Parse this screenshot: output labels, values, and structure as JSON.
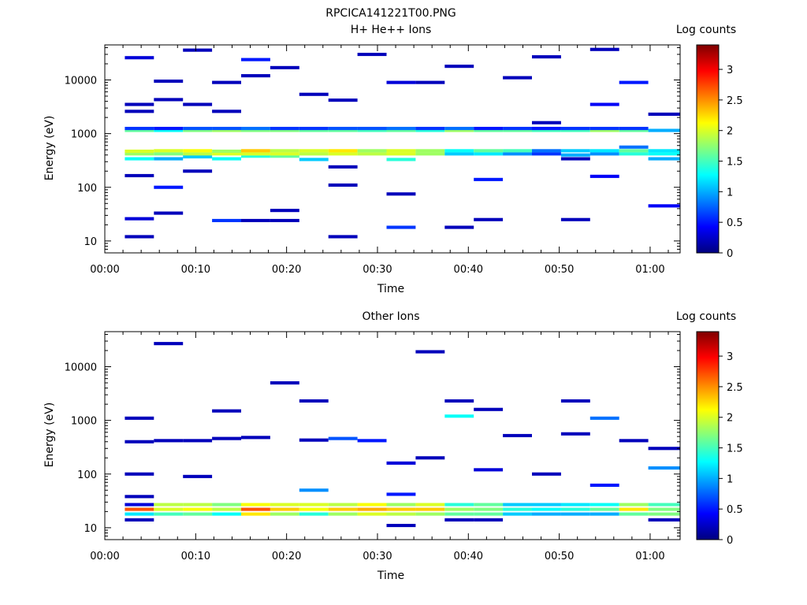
{
  "figure_title": "RPCICA141221T00.PNG",
  "colorscale": [
    "#00007f",
    "#0000ff",
    "#0080ff",
    "#00ffff",
    "#80ff80",
    "#ffff00",
    "#ff8000",
    "#ff0000",
    "#7f0000"
  ],
  "chart_data": [
    {
      "type": "heatmap",
      "title": "H+ He++ Ions",
      "xlabel": "Time",
      "ylabel": "Energy (eV)",
      "colorbar_label": "Log counts",
      "x_ticks": [
        "00:00",
        "00:10",
        "00:20",
        "00:30",
        "00:40",
        "00:50",
        "01:00"
      ],
      "y_ticks": [
        "10",
        "100",
        "1000",
        "10000"
      ],
      "y_scale": "log",
      "xlim_minutes": [
        0,
        63.3
      ],
      "ylim": [
        6,
        45000
      ],
      "clim": [
        0,
        3.4
      ],
      "colorbar_ticks": [
        "0",
        "0.5",
        "1",
        "1.5",
        "2",
        "2.5",
        "3"
      ],
      "time_bins_minutes": [
        [
          2.2,
          5.4
        ],
        [
          5.4,
          8.6
        ],
        [
          8.6,
          11.8
        ],
        [
          11.8,
          15.0
        ],
        [
          15.0,
          18.2
        ],
        [
          18.2,
          21.4
        ],
        [
          21.4,
          24.6
        ],
        [
          24.6,
          27.8
        ],
        [
          27.8,
          31.0
        ],
        [
          31.0,
          34.2
        ],
        [
          34.2,
          37.4
        ],
        [
          37.4,
          40.6
        ],
        [
          40.6,
          43.8
        ],
        [
          43.8,
          47.0
        ],
        [
          47.0,
          50.2
        ],
        [
          50.2,
          53.4
        ],
        [
          53.4,
          56.6
        ],
        [
          56.6,
          59.8
        ],
        [
          59.8,
          63.3
        ]
      ],
      "cells": [
        [
          0,
          12,
          0.2
        ],
        [
          0,
          26,
          0.3
        ],
        [
          0,
          165,
          0.2
        ],
        [
          0,
          340,
          1.3
        ],
        [
          0,
          420,
          1.8
        ],
        [
          0,
          470,
          2.0
        ],
        [
          0,
          1150,
          1.6
        ],
        [
          0,
          1250,
          0.6
        ],
        [
          0,
          2600,
          0.2
        ],
        [
          0,
          3500,
          0.2
        ],
        [
          0,
          26000,
          0.3
        ],
        [
          1,
          33,
          0.2
        ],
        [
          1,
          100,
          0.5
        ],
        [
          1,
          340,
          1.0
        ],
        [
          1,
          420,
          1.7
        ],
        [
          1,
          480,
          2.0
        ],
        [
          1,
          1150,
          1.3
        ],
        [
          1,
          1250,
          0.5
        ],
        [
          1,
          4300,
          0.2
        ],
        [
          1,
          9500,
          0.2
        ],
        [
          2,
          200,
          0.2
        ],
        [
          2,
          370,
          1.1
        ],
        [
          2,
          420,
          1.9
        ],
        [
          2,
          480,
          2.1
        ],
        [
          2,
          1150,
          1.7
        ],
        [
          2,
          1250,
          0.7
        ],
        [
          2,
          3500,
          0.2
        ],
        [
          2,
          36000,
          0.2
        ],
        [
          3,
          24,
          0.6
        ],
        [
          3,
          340,
          1.3
        ],
        [
          3,
          420,
          2.0
        ],
        [
          3,
          470,
          1.8
        ],
        [
          3,
          1150,
          1.8
        ],
        [
          3,
          1250,
          0.7
        ],
        [
          3,
          2600,
          0.2
        ],
        [
          3,
          9000,
          0.2
        ],
        [
          4,
          24,
          0.2
        ],
        [
          4,
          380,
          1.4
        ],
        [
          4,
          420,
          2.0
        ],
        [
          4,
          480,
          2.3
        ],
        [
          4,
          1150,
          1.7
        ],
        [
          4,
          1250,
          0.8
        ],
        [
          4,
          12000,
          0.2
        ],
        [
          4,
          24000,
          0.5
        ],
        [
          5,
          24,
          0.2
        ],
        [
          5,
          37,
          0.2
        ],
        [
          5,
          380,
          1.6
        ],
        [
          5,
          420,
          2.0
        ],
        [
          5,
          480,
          1.9
        ],
        [
          5,
          1150,
          1.7
        ],
        [
          5,
          1250,
          0.6
        ],
        [
          5,
          17000,
          0.2
        ],
        [
          6,
          330,
          1.1
        ],
        [
          6,
          420,
          1.9
        ],
        [
          6,
          480,
          2.0
        ],
        [
          6,
          1150,
          1.6
        ],
        [
          6,
          1250,
          0.6
        ],
        [
          6,
          5400,
          0.2
        ],
        [
          7,
          12,
          0.2
        ],
        [
          7,
          110,
          0.2
        ],
        [
          7,
          240,
          0.2
        ],
        [
          7,
          420,
          2.0
        ],
        [
          7,
          480,
          2.2
        ],
        [
          7,
          1150,
          1.6
        ],
        [
          7,
          1250,
          0.7
        ],
        [
          7,
          4200,
          0.2
        ],
        [
          8,
          420,
          1.9
        ],
        [
          8,
          480,
          1.8
        ],
        [
          8,
          1150,
          1.5
        ],
        [
          8,
          1250,
          0.7
        ],
        [
          8,
          30000,
          0.2
        ],
        [
          9,
          18,
          0.6
        ],
        [
          9,
          75,
          0.2
        ],
        [
          9,
          330,
          1.4
        ],
        [
          9,
          420,
          2.0
        ],
        [
          9,
          480,
          2.0
        ],
        [
          9,
          1150,
          1.6
        ],
        [
          9,
          1250,
          0.8
        ],
        [
          9,
          9000,
          0.3
        ],
        [
          10,
          420,
          1.8
        ],
        [
          10,
          480,
          1.8
        ],
        [
          10,
          1150,
          1.4
        ],
        [
          10,
          1250,
          0.6
        ],
        [
          10,
          9000,
          0.2
        ],
        [
          11,
          18,
          0.2
        ],
        [
          11,
          420,
          1.1
        ],
        [
          11,
          480,
          1.3
        ],
        [
          11,
          1150,
          1.8
        ],
        [
          11,
          1250,
          0.8
        ],
        [
          11,
          18000,
          0.2
        ],
        [
          12,
          25,
          0.2
        ],
        [
          12,
          140,
          0.5
        ],
        [
          12,
          420,
          1.2
        ],
        [
          12,
          480,
          1.6
        ],
        [
          12,
          1150,
          1.6
        ],
        [
          12,
          1250,
          0.5
        ],
        [
          13,
          420,
          0.9
        ],
        [
          13,
          480,
          1.5
        ],
        [
          13,
          1150,
          1.6
        ],
        [
          13,
          1250,
          0.6
        ],
        [
          13,
          11000,
          0.2
        ],
        [
          14,
          420,
          0.6
        ],
        [
          14,
          480,
          0.8
        ],
        [
          14,
          1150,
          1.5
        ],
        [
          14,
          1250,
          0.5
        ],
        [
          14,
          1600,
          0.2
        ],
        [
          14,
          27000,
          0.2
        ],
        [
          15,
          25,
          0.2
        ],
        [
          15,
          340,
          0.2
        ],
        [
          15,
          400,
          1.0
        ],
        [
          15,
          480,
          1.1
        ],
        [
          15,
          1150,
          1.5
        ],
        [
          15,
          1250,
          0.6
        ],
        [
          16,
          160,
          0.4
        ],
        [
          16,
          420,
          0.9
        ],
        [
          16,
          480,
          1.2
        ],
        [
          16,
          1150,
          1.8
        ],
        [
          16,
          1250,
          0.6
        ],
        [
          16,
          3500,
          0.4
        ],
        [
          16,
          37000,
          0.2
        ],
        [
          17,
          420,
          1.4
        ],
        [
          17,
          480,
          1.6
        ],
        [
          17,
          560,
          0.8
        ],
        [
          17,
          1150,
          1.6
        ],
        [
          17,
          1250,
          0.6
        ],
        [
          17,
          9000,
          0.5
        ],
        [
          18,
          45,
          0.4
        ],
        [
          18,
          340,
          1.0
        ],
        [
          18,
          420,
          1.3
        ],
        [
          18,
          480,
          1.2
        ],
        [
          18,
          1150,
          1.0
        ],
        [
          18,
          2300,
          0.2
        ]
      ]
    },
    {
      "type": "heatmap",
      "title": "Other Ions",
      "xlabel": "Time",
      "ylabel": "Energy (eV)",
      "colorbar_label": "Log counts",
      "x_ticks": [
        "00:00",
        "00:10",
        "00:20",
        "00:30",
        "00:40",
        "00:50",
        "01:00"
      ],
      "y_ticks": [
        "10",
        "100",
        "1000",
        "10000"
      ],
      "y_scale": "log",
      "xlim_minutes": [
        0,
        63.3
      ],
      "ylim": [
        6,
        45000
      ],
      "clim": [
        0,
        3.4
      ],
      "colorbar_ticks": [
        "0",
        "0.5",
        "1",
        "1.5",
        "2",
        "2.5",
        "3"
      ],
      "time_bins_minutes": [
        [
          2.2,
          5.4
        ],
        [
          5.4,
          8.6
        ],
        [
          8.6,
          11.8
        ],
        [
          11.8,
          15.0
        ],
        [
          15.0,
          18.2
        ],
        [
          18.2,
          21.4
        ],
        [
          21.4,
          24.6
        ],
        [
          24.6,
          27.8
        ],
        [
          27.8,
          31.0
        ],
        [
          31.0,
          34.2
        ],
        [
          34.2,
          37.4
        ],
        [
          37.4,
          40.6
        ],
        [
          40.6,
          43.8
        ],
        [
          43.8,
          47.0
        ],
        [
          47.0,
          50.2
        ],
        [
          50.2,
          53.4
        ],
        [
          53.4,
          56.6
        ],
        [
          56.6,
          59.8
        ],
        [
          59.8,
          63.3
        ]
      ],
      "cells": [
        [
          0,
          14,
          0.2
        ],
        [
          0,
          18,
          1.2
        ],
        [
          0,
          22,
          2.7
        ],
        [
          0,
          27,
          0.3
        ],
        [
          0,
          38,
          0.2
        ],
        [
          0,
          100,
          0.2
        ],
        [
          0,
          400,
          0.2
        ],
        [
          0,
          1100,
          0.2
        ],
        [
          1,
          18,
          1.5
        ],
        [
          1,
          22,
          2.0
        ],
        [
          1,
          27,
          1.9
        ],
        [
          1,
          420,
          0.2
        ],
        [
          1,
          27000,
          0.2
        ],
        [
          2,
          18,
          1.6
        ],
        [
          2,
          22,
          2.1
        ],
        [
          2,
          27,
          1.9
        ],
        [
          2,
          90,
          0.2
        ],
        [
          2,
          420,
          0.2
        ],
        [
          3,
          18,
          1.3
        ],
        [
          3,
          22,
          1.9
        ],
        [
          3,
          27,
          1.7
        ],
        [
          3,
          460,
          0.2
        ],
        [
          3,
          1500,
          0.2
        ],
        [
          4,
          18,
          2.2
        ],
        [
          4,
          22,
          2.7
        ],
        [
          4,
          27,
          2.1
        ],
        [
          4,
          480,
          0.2
        ],
        [
          5,
          18,
          1.8
        ],
        [
          5,
          22,
          2.3
        ],
        [
          5,
          27,
          2.0
        ],
        [
          5,
          5000,
          0.2
        ],
        [
          6,
          18,
          1.4
        ],
        [
          6,
          22,
          2.1
        ],
        [
          6,
          27,
          2.0
        ],
        [
          6,
          50,
          0.9
        ],
        [
          6,
          430,
          0.2
        ],
        [
          6,
          2300,
          0.2
        ],
        [
          7,
          18,
          1.8
        ],
        [
          7,
          22,
          2.3
        ],
        [
          7,
          27,
          1.9
        ],
        [
          7,
          460,
          0.7
        ],
        [
          8,
          18,
          2.0
        ],
        [
          8,
          22,
          2.4
        ],
        [
          8,
          27,
          2.1
        ],
        [
          8,
          420,
          0.5
        ],
        [
          9,
          11,
          0.2
        ],
        [
          9,
          18,
          1.9
        ],
        [
          9,
          22,
          2.3
        ],
        [
          9,
          27,
          1.8
        ],
        [
          9,
          42,
          0.5
        ],
        [
          9,
          160,
          0.3
        ],
        [
          10,
          18,
          1.8
        ],
        [
          10,
          22,
          2.3
        ],
        [
          10,
          27,
          2.0
        ],
        [
          10,
          200,
          0.2
        ],
        [
          10,
          19000,
          0.2
        ],
        [
          11,
          14,
          0.2
        ],
        [
          11,
          18,
          1.6
        ],
        [
          11,
          22,
          1.8
        ],
        [
          11,
          27,
          1.4
        ],
        [
          11,
          1200,
          1.3
        ],
        [
          11,
          2300,
          0.2
        ],
        [
          12,
          14,
          0.2
        ],
        [
          12,
          18,
          1.6
        ],
        [
          12,
          22,
          1.7
        ],
        [
          12,
          27,
          1.6
        ],
        [
          12,
          120,
          0.3
        ],
        [
          12,
          1600,
          0.2
        ],
        [
          13,
          18,
          1.1
        ],
        [
          13,
          22,
          1.4
        ],
        [
          13,
          27,
          1.1
        ],
        [
          13,
          520,
          0.2
        ],
        [
          14,
          18,
          1.0
        ],
        [
          14,
          22,
          1.3
        ],
        [
          14,
          27,
          1.1
        ],
        [
          14,
          100,
          0.2
        ],
        [
          15,
          18,
          1.0
        ],
        [
          15,
          22,
          1.4
        ],
        [
          15,
          27,
          1.2
        ],
        [
          15,
          560,
          0.2
        ],
        [
          15,
          2300,
          0.2
        ],
        [
          16,
          18,
          1.0
        ],
        [
          16,
          22,
          1.6
        ],
        [
          16,
          27,
          1.3
        ],
        [
          16,
          1100,
          0.8
        ],
        [
          16,
          62,
          0.5
        ],
        [
          17,
          18,
          1.6
        ],
        [
          17,
          22,
          2.2
        ],
        [
          17,
          27,
          1.8
        ],
        [
          17,
          420,
          0.2
        ],
        [
          18,
          14,
          0.2
        ],
        [
          18,
          18,
          1.7
        ],
        [
          18,
          22,
          1.7
        ],
        [
          18,
          27,
          1.5
        ],
        [
          18,
          130,
          0.9
        ],
        [
          18,
          300,
          0.2
        ]
      ]
    }
  ]
}
